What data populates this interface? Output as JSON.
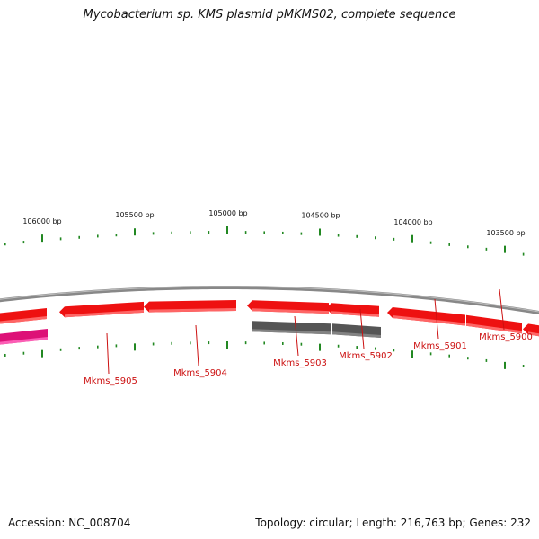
{
  "title": "Mycobacterium sp. KMS plasmid pMKMS02, complete sequence",
  "footer": {
    "accession": "Accession: NC_008704",
    "topology": "Topology: circular; Length: 216,763 bp; Genes: 232"
  },
  "colors": {
    "forward_gene": "#ee1111",
    "forward_gene_shadow": "#ff7070",
    "reverse_gene": "#555555",
    "reverse_gene_shadow": "#888888",
    "magenta_feature": "#dd1177",
    "backbone": "#888888",
    "ticks": "#228822",
    "gene_label": "#cc1111"
  },
  "scale_labels": [
    {
      "label": "106000 bp",
      "bp": 106000
    },
    {
      "label": "105500 bp",
      "bp": 105500
    },
    {
      "label": "105000 bp",
      "bp": 105000
    },
    {
      "label": "104500 bp",
      "bp": 104500
    },
    {
      "label": "104000 bp",
      "bp": 104000
    },
    {
      "label": "103500 bp",
      "bp": 103500
    }
  ],
  "genes": [
    {
      "name": "Mkms_5905",
      "strand": "forward"
    },
    {
      "name": "Mkms_5904",
      "strand": "forward"
    },
    {
      "name": "Mkms_5903",
      "strand": "forward"
    },
    {
      "name": "Mkms_5902",
      "strand": "forward"
    },
    {
      "name": "Mkms_5901",
      "strand": "forward"
    },
    {
      "name": "Mkms_5900",
      "strand": "forward"
    }
  ]
}
